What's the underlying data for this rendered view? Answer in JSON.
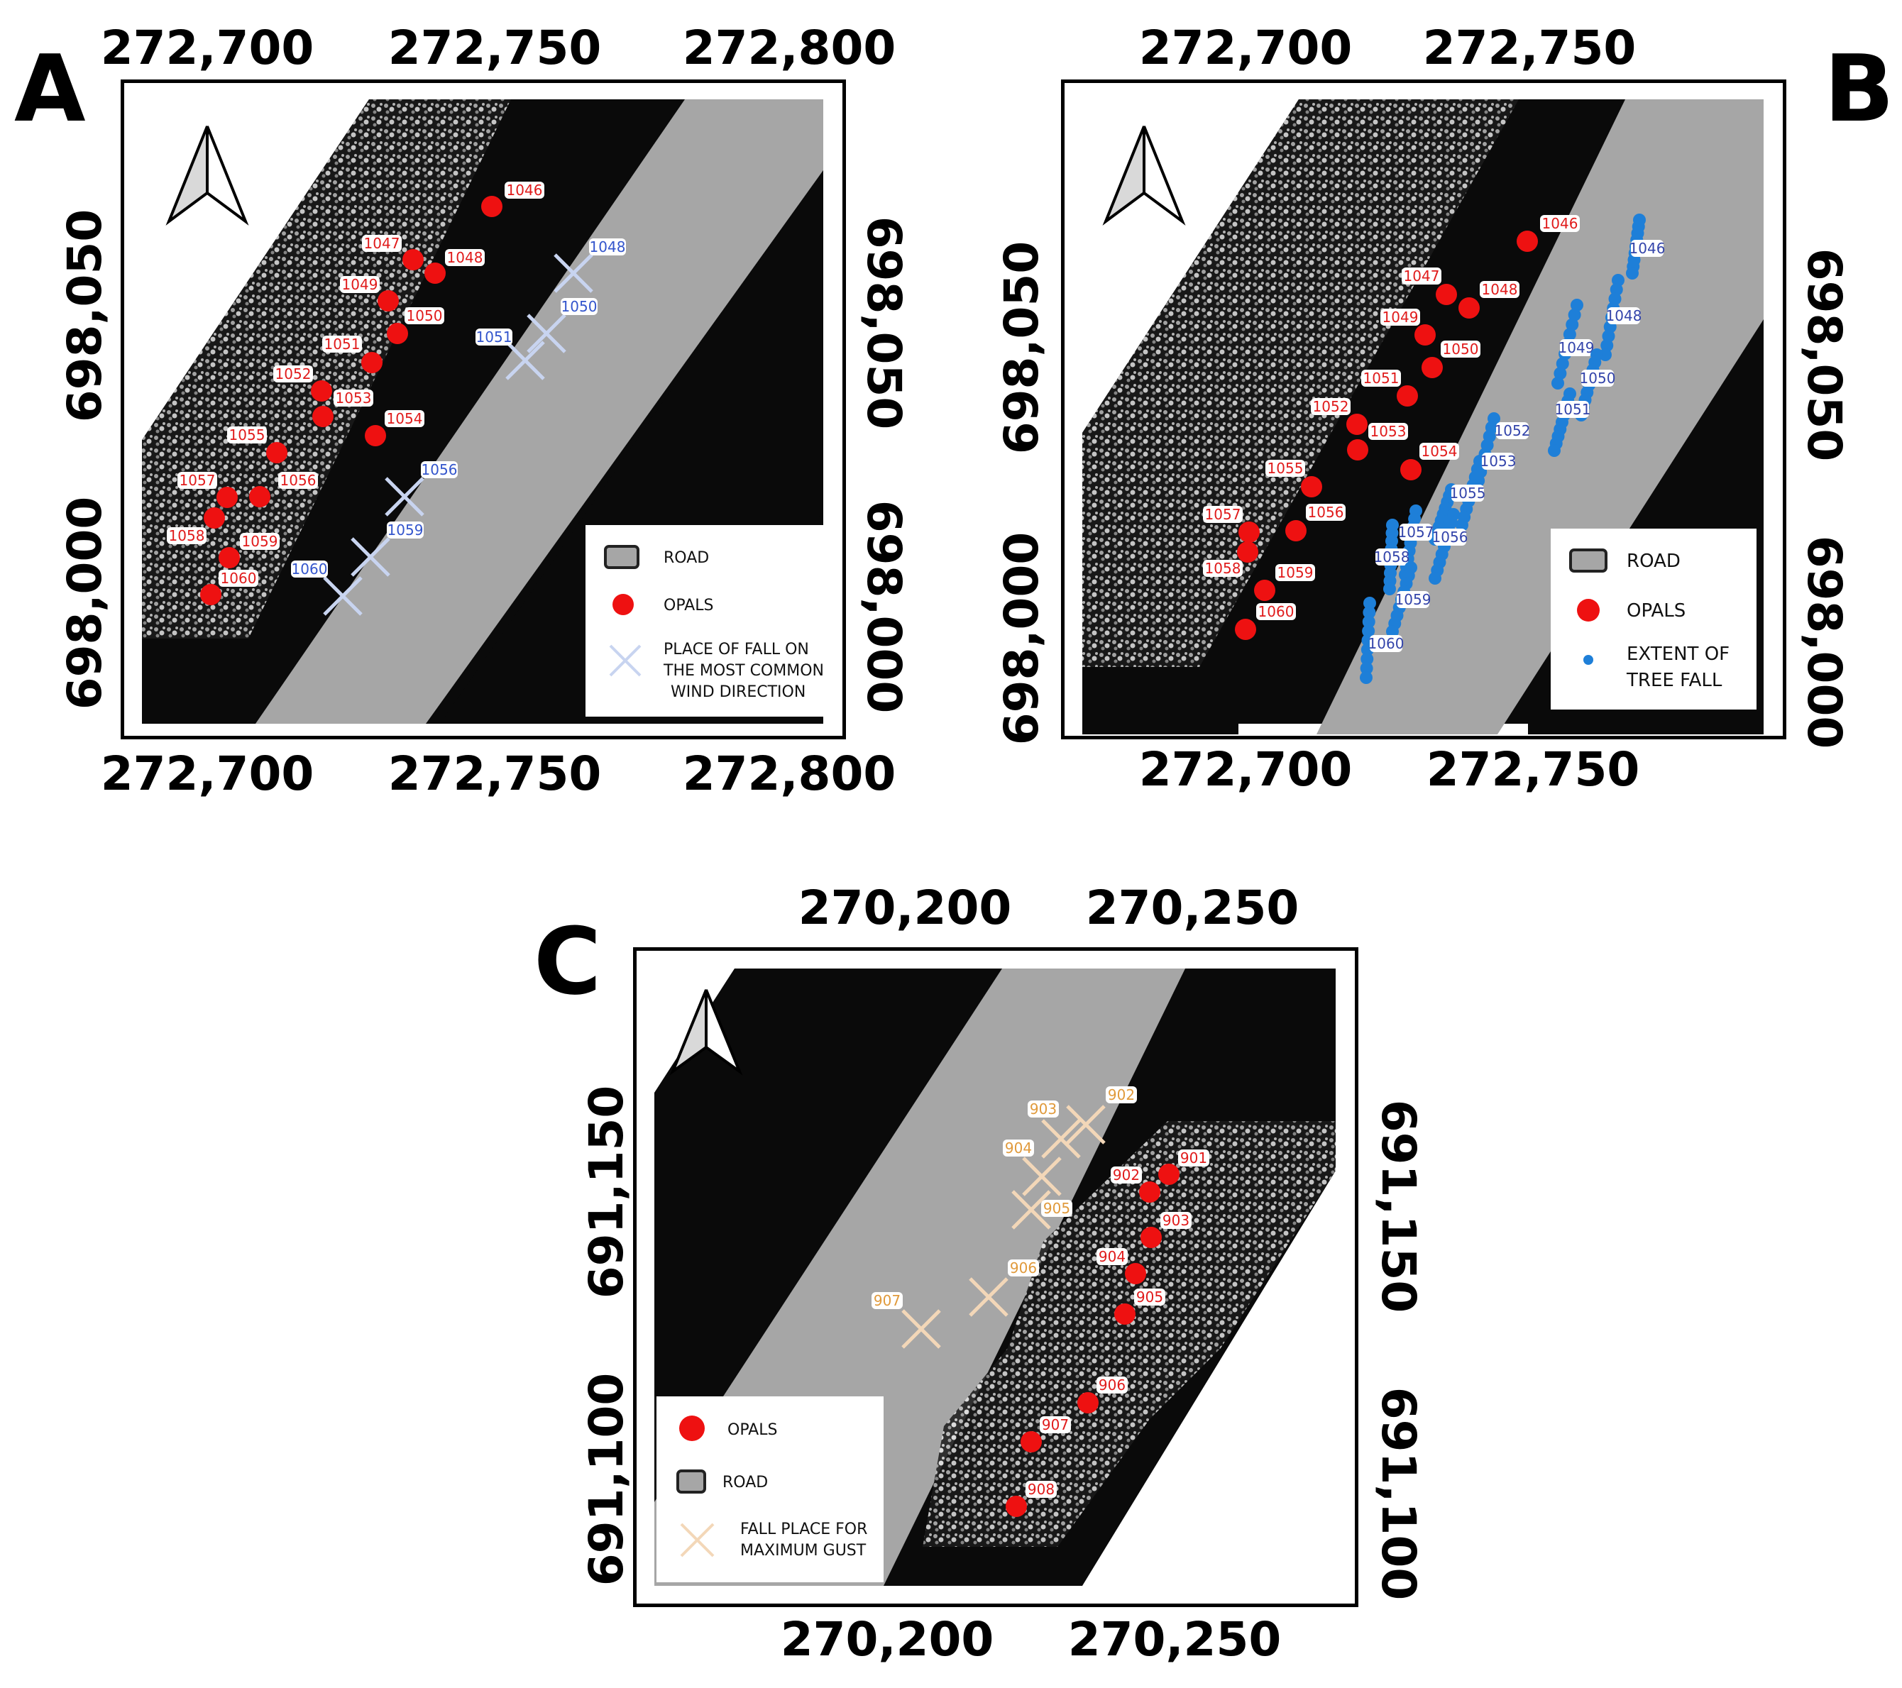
{
  "panels": {
    "A": {
      "letter": "A",
      "x_ticks_top": [
        "272,700",
        "272,750",
        "272,800"
      ],
      "x_ticks_bottom": [
        "272,700",
        "272,750",
        "272,800"
      ],
      "y_ticks_left": [
        "698,050",
        "698,000"
      ],
      "y_ticks_right": [
        "698,050",
        "698,000"
      ],
      "legend": {
        "road": "ROAD",
        "opals": "OPALS",
        "fall_line1": "PLACE OF FALL ON",
        "fall_line2": "THE MOST COMMON",
        "fall_line3": "WIND DIRECTION"
      },
      "opals": [
        "1046",
        "1047",
        "1048",
        "1049",
        "1050",
        "1051",
        "1052",
        "1053",
        "1054",
        "1055",
        "1056",
        "1057",
        "1058",
        "1059",
        "1060"
      ],
      "falls": [
        "1048",
        "1050",
        "1051",
        "1056",
        "1059",
        "1060"
      ]
    },
    "B": {
      "letter": "B",
      "x_ticks_top": [
        "272,700",
        "272,750"
      ],
      "x_ticks_bottom": [
        "272,700",
        "272,750"
      ],
      "y_ticks_left": [
        "698,050",
        "698,000"
      ],
      "y_ticks_right": [
        "698,050",
        "698,000"
      ],
      "legend": {
        "road": "ROAD",
        "opals": "OPALS",
        "extent_line1": "EXTENT OF",
        "extent_line2": "TREE FALL"
      },
      "opals": [
        "1046",
        "1047",
        "1048",
        "1049",
        "1050",
        "1051",
        "1052",
        "1053",
        "1054",
        "1055",
        "1056",
        "1057",
        "1058",
        "1059",
        "1060"
      ],
      "extents": [
        "1046",
        "1048",
        "1049",
        "1050",
        "1051",
        "1052",
        "1053",
        "1055",
        "1057",
        "1056",
        "1058",
        "1059",
        "1060"
      ]
    },
    "C": {
      "letter": "C",
      "x_ticks_top": [
        "270,200",
        "270,250"
      ],
      "x_ticks_bottom": [
        "270,200",
        "270,250"
      ],
      "y_ticks_left": [
        "691,150",
        "691,100"
      ],
      "y_ticks_right": [
        "691,150",
        "691,100"
      ],
      "legend": {
        "opals": "OPALS",
        "road": "ROAD",
        "gust_line1": "FALL PLACE FOR",
        "gust_line2": "MAXIMUM GUST"
      },
      "opals": [
        "901",
        "902",
        "903",
        "904",
        "905",
        "906",
        "907",
        "908"
      ],
      "falls": [
        "902",
        "903",
        "904",
        "905",
        "906",
        "907"
      ]
    }
  },
  "colors": {
    "opal": "#ee1111",
    "fall_a": "#c8d4f0",
    "extent_b": "#1e7fd8",
    "fall_c": "#f3d7b8",
    "road": "#a6a6a6",
    "bg": "#0a0a0a"
  }
}
